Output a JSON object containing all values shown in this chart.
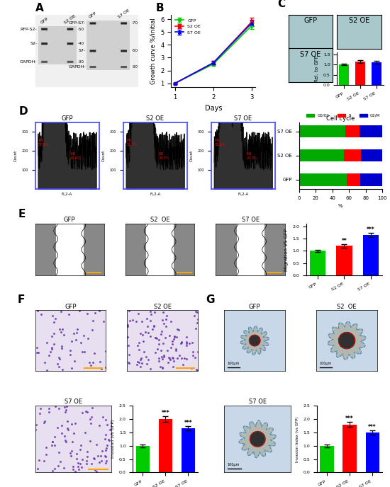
{
  "panel_labels": [
    "A",
    "B",
    "C",
    "D",
    "E",
    "F",
    "G"
  ],
  "growth_curve": {
    "days": [
      1,
      2,
      3
    ],
    "GFP": [
      1.0,
      2.5,
      5.5
    ],
    "S2_OE": [
      1.0,
      2.6,
      5.8
    ],
    "S7_OE": [
      1.0,
      2.6,
      5.7
    ],
    "GFP_err": [
      0.05,
      0.15,
      0.25
    ],
    "S2_err": [
      0.05,
      0.15,
      0.3
    ],
    "S7_err": [
      0.05,
      0.15,
      0.25
    ],
    "colors": {
      "GFP": "#00cc00",
      "S2 OE": "#ff0000",
      "S7 OE": "#0000ff"
    },
    "ylabel": "Growth curve %/initial",
    "xlabel": "Days"
  },
  "colony_bar": {
    "categories": [
      "GFP",
      "S2 OE",
      "S7 OE"
    ],
    "values": [
      1.0,
      1.15,
      1.12
    ],
    "errors": [
      0.04,
      0.07,
      0.07
    ],
    "colors": [
      "#00cc00",
      "#ff0000",
      "#0000ff"
    ],
    "ylabel": "Rel. to GFP"
  },
  "cell_cycle": {
    "groups": [
      "GFP",
      "S2 OE",
      "S7 OE"
    ],
    "G0G1": [
      57.5,
      53.7,
      55.6
    ],
    "S": [
      15.9,
      20.8,
      17.4
    ],
    "G2M": [
      26.6,
      25.5,
      27.0
    ],
    "colors": {
      "G0G1": "#00aa00",
      "S": "#ff0000",
      "G2M": "#0000cc"
    },
    "xlabel": "%",
    "title": "Cell cycle"
  },
  "migration_bar": {
    "categories": [
      "GFP",
      "S2 OE",
      "S7 OE"
    ],
    "values": [
      1.0,
      1.2,
      1.65
    ],
    "errors": [
      0.04,
      0.08,
      0.08
    ],
    "colors": [
      "#00cc00",
      "#ff0000",
      "#0000ff"
    ],
    "ylabel": "Migration VS GFP",
    "sig_labels": [
      "",
      "**",
      "***"
    ]
  },
  "invasion_bar": {
    "categories": [
      "GFP",
      "S2 OE",
      "S7 OE"
    ],
    "values": [
      1.0,
      2.0,
      1.65
    ],
    "errors": [
      0.05,
      0.1,
      0.08
    ],
    "colors": [
      "#00cc00",
      "#ff0000",
      "#0000ff"
    ],
    "ylabel": "Invasion (vs GFP)",
    "sig_labels": [
      "",
      "***",
      "***"
    ]
  },
  "invasion_index_bar": {
    "categories": [
      "GFP",
      "S2 OE",
      "S7 OE"
    ],
    "values": [
      1.0,
      1.8,
      1.5
    ],
    "errors": [
      0.05,
      0.1,
      0.08
    ],
    "colors": [
      "#00cc00",
      "#ff0000",
      "#0000ff"
    ],
    "ylabel": "Invasion Index (vs GFP)",
    "sig_labels": [
      "",
      "***",
      "***"
    ]
  },
  "bg_color": "#ffffff",
  "panel_label_fontsize": 11,
  "axis_fontsize": 7,
  "tick_fontsize": 6
}
